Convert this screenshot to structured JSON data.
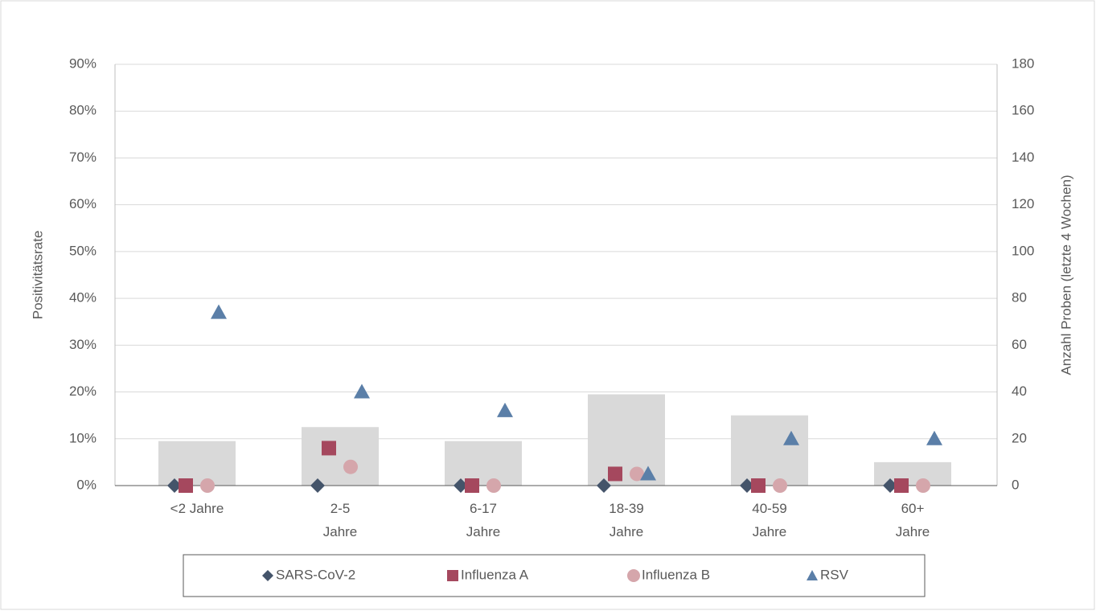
{
  "chart_data": {
    "type": "combo",
    "y_label": "Positivitätsrate",
    "y2_label": "Anzahl Proben (letzte 4 Wochen)",
    "categories": [
      "<2 Jahre",
      "2-5 Jahre",
      "6-17 Jahre",
      "18-39 Jahre",
      "40-59 Jahre",
      "60+ Jahre"
    ],
    "bar_series": {
      "color": "#d9d9d9",
      "axis": "y2",
      "values": [
        19,
        25,
        19,
        39,
        30,
        10
      ]
    },
    "series": [
      {
        "name": "SARS-CoV-2",
        "color": "#44546a",
        "marker": "diamond",
        "values": [
          0,
          0,
          0,
          0,
          0,
          0
        ]
      },
      {
        "name": "Influenza A",
        "color": "#a5485e",
        "marker": "square",
        "values": [
          0,
          8,
          0,
          2.5,
          0,
          0
        ]
      },
      {
        "name": "Influenza B",
        "color": "#d5a6ab",
        "marker": "circle",
        "values": [
          0,
          4,
          0,
          2.5,
          0,
          0
        ]
      },
      {
        "name": "RSV",
        "color": "#5b7fa8",
        "marker": "triangle",
        "values": [
          37,
          20,
          16,
          2.5,
          10,
          10
        ]
      }
    ],
    "ylim": [
      0,
      90
    ],
    "yticks": [
      {
        "value": 0,
        "label": "0%"
      },
      {
        "value": 10,
        "label": "10%"
      },
      {
        "value": 20,
        "label": "20%"
      },
      {
        "value": 30,
        "label": "30%"
      },
      {
        "value": 40,
        "label": "40%"
      },
      {
        "value": 50,
        "label": "50%"
      },
      {
        "value": 60,
        "label": "60%"
      },
      {
        "value": 70,
        "label": "70%"
      },
      {
        "value": 80,
        "label": "80%"
      },
      {
        "value": 90,
        "label": "90%"
      }
    ],
    "y2lim": [
      0,
      180
    ],
    "y2ticks": [
      0,
      20,
      40,
      60,
      80,
      100,
      120,
      140,
      160,
      180
    ],
    "grid": true
  }
}
